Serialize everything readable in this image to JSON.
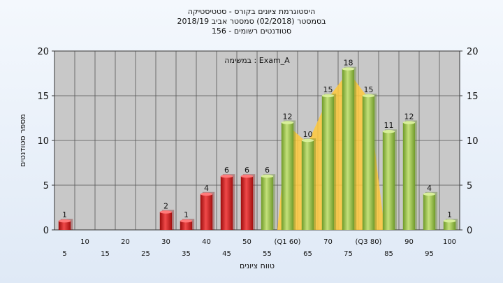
{
  "header": {
    "line1": "היסטוגרמת ציונים בקורס - סטטיסטיקה",
    "line2": "בסמסטר  (02/2018)  סמסטר אביב 2018/19",
    "line3": "סטודנטים רשומים - 156"
  },
  "chart_data": {
    "type": "bar",
    "title": "היסטוגרמת ציונים בקורס - סטטיסטיקה",
    "annotation": "במשימה : Exam_A",
    "xlabel": "טווח ציונים",
    "ylabel": "מספר סטודנטים",
    "ylim": [
      0,
      20
    ],
    "yticks": [
      0,
      5,
      10,
      15,
      20
    ],
    "grid": true,
    "categories": [
      "5",
      "10",
      "15",
      "20",
      "25",
      "30",
      "35",
      "40",
      "45",
      "50",
      "55",
      "60",
      "65",
      "70",
      "75",
      "80",
      "85",
      "90",
      "95",
      "100"
    ],
    "tick_labels_row1": [
      "10",
      "20",
      "30",
      "40",
      "50",
      "(Q1 60)",
      "70",
      "(Q3 80)",
      "90",
      "100"
    ],
    "tick_labels_row2": [
      "5",
      "15",
      "25",
      "35",
      "45",
      "55",
      "65",
      "75",
      "85",
      "95"
    ],
    "values": [
      1,
      0,
      0,
      0,
      0,
      2,
      1,
      4,
      6,
      6,
      6,
      12,
      10,
      15,
      18,
      15,
      11,
      12,
      4,
      1
    ],
    "pass_threshold": 55,
    "colors": {
      "fail": "#d42020",
      "pass": "#8ab83a",
      "iqr": "#ffc93c"
    }
  }
}
